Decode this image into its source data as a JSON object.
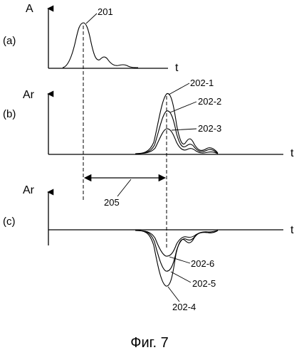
{
  "panels": {
    "a": {
      "label": "(a)",
      "y_axis": "A",
      "x_axis": "t"
    },
    "b": {
      "label": "(b)",
      "y_axis": "Ar",
      "x_axis": "t"
    },
    "c": {
      "label": "(c)",
      "y_axis": "Ar",
      "x_axis": "t"
    }
  },
  "callouts": {
    "c201": "201",
    "c202_1": "202-1",
    "c202_2": "202-2",
    "c202_3": "202-3",
    "c202_4": "202-4",
    "c202_5": "202-5",
    "c202_6": "202-6",
    "c205": "205"
  },
  "caption": "Фиг. 7"
}
